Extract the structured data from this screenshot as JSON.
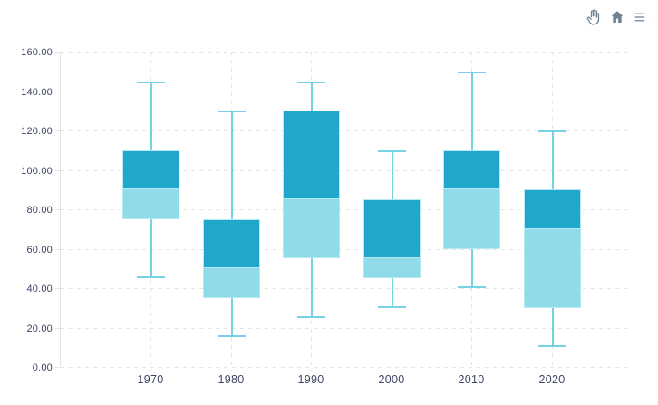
{
  "toolbar": {
    "icons": [
      {
        "name": "pan-icon"
      },
      {
        "name": "home-icon"
      },
      {
        "name": "menu-icon"
      }
    ],
    "icon_color": "#6E8192"
  },
  "colors": {
    "background": "#FFFFFF",
    "box_upper": "#1FA8CC",
    "box_lower": "#8FDBEA",
    "whisker": "#76D1E5",
    "box_stroke": "#B6E9F3",
    "grid_line": "#E4E4E4",
    "axis_label": "#3C4563"
  },
  "chart_data": {
    "type": "boxplot",
    "title": "",
    "xlabel": "",
    "ylabel": "",
    "categories": [
      "1970",
      "1980",
      "1990",
      "2000",
      "2010",
      "2020"
    ],
    "series": [
      {
        "name": "boxplot",
        "data": [
          {
            "x": "1970",
            "min": 45,
            "q1": 75,
            "median": 90,
            "q3": 110,
            "max": 145
          },
          {
            "x": "1980",
            "min": 15,
            "q1": 35,
            "median": 50,
            "q3": 75,
            "max": 130
          },
          {
            "x": "1990",
            "min": 25,
            "q1": 55,
            "median": 85,
            "q3": 130,
            "max": 145
          },
          {
            "x": "2000",
            "min": 30,
            "q1": 45,
            "median": 55,
            "q3": 85,
            "max": 110
          },
          {
            "x": "2010",
            "min": 40,
            "q1": 60,
            "median": 90,
            "q3": 110,
            "max": 150
          },
          {
            "x": "2020",
            "min": 10,
            "q1": 30,
            "median": 70,
            "q3": 90,
            "max": 120
          }
        ]
      }
    ],
    "ylim": [
      0,
      160
    ],
    "ytick_step": 20,
    "ytick_labels": [
      "0.00",
      "20.00",
      "40.00",
      "60.00",
      "80.00",
      "100.00",
      "120.00",
      "140.00",
      "160.00"
    ],
    "grid": "dashed",
    "legend": "none"
  }
}
